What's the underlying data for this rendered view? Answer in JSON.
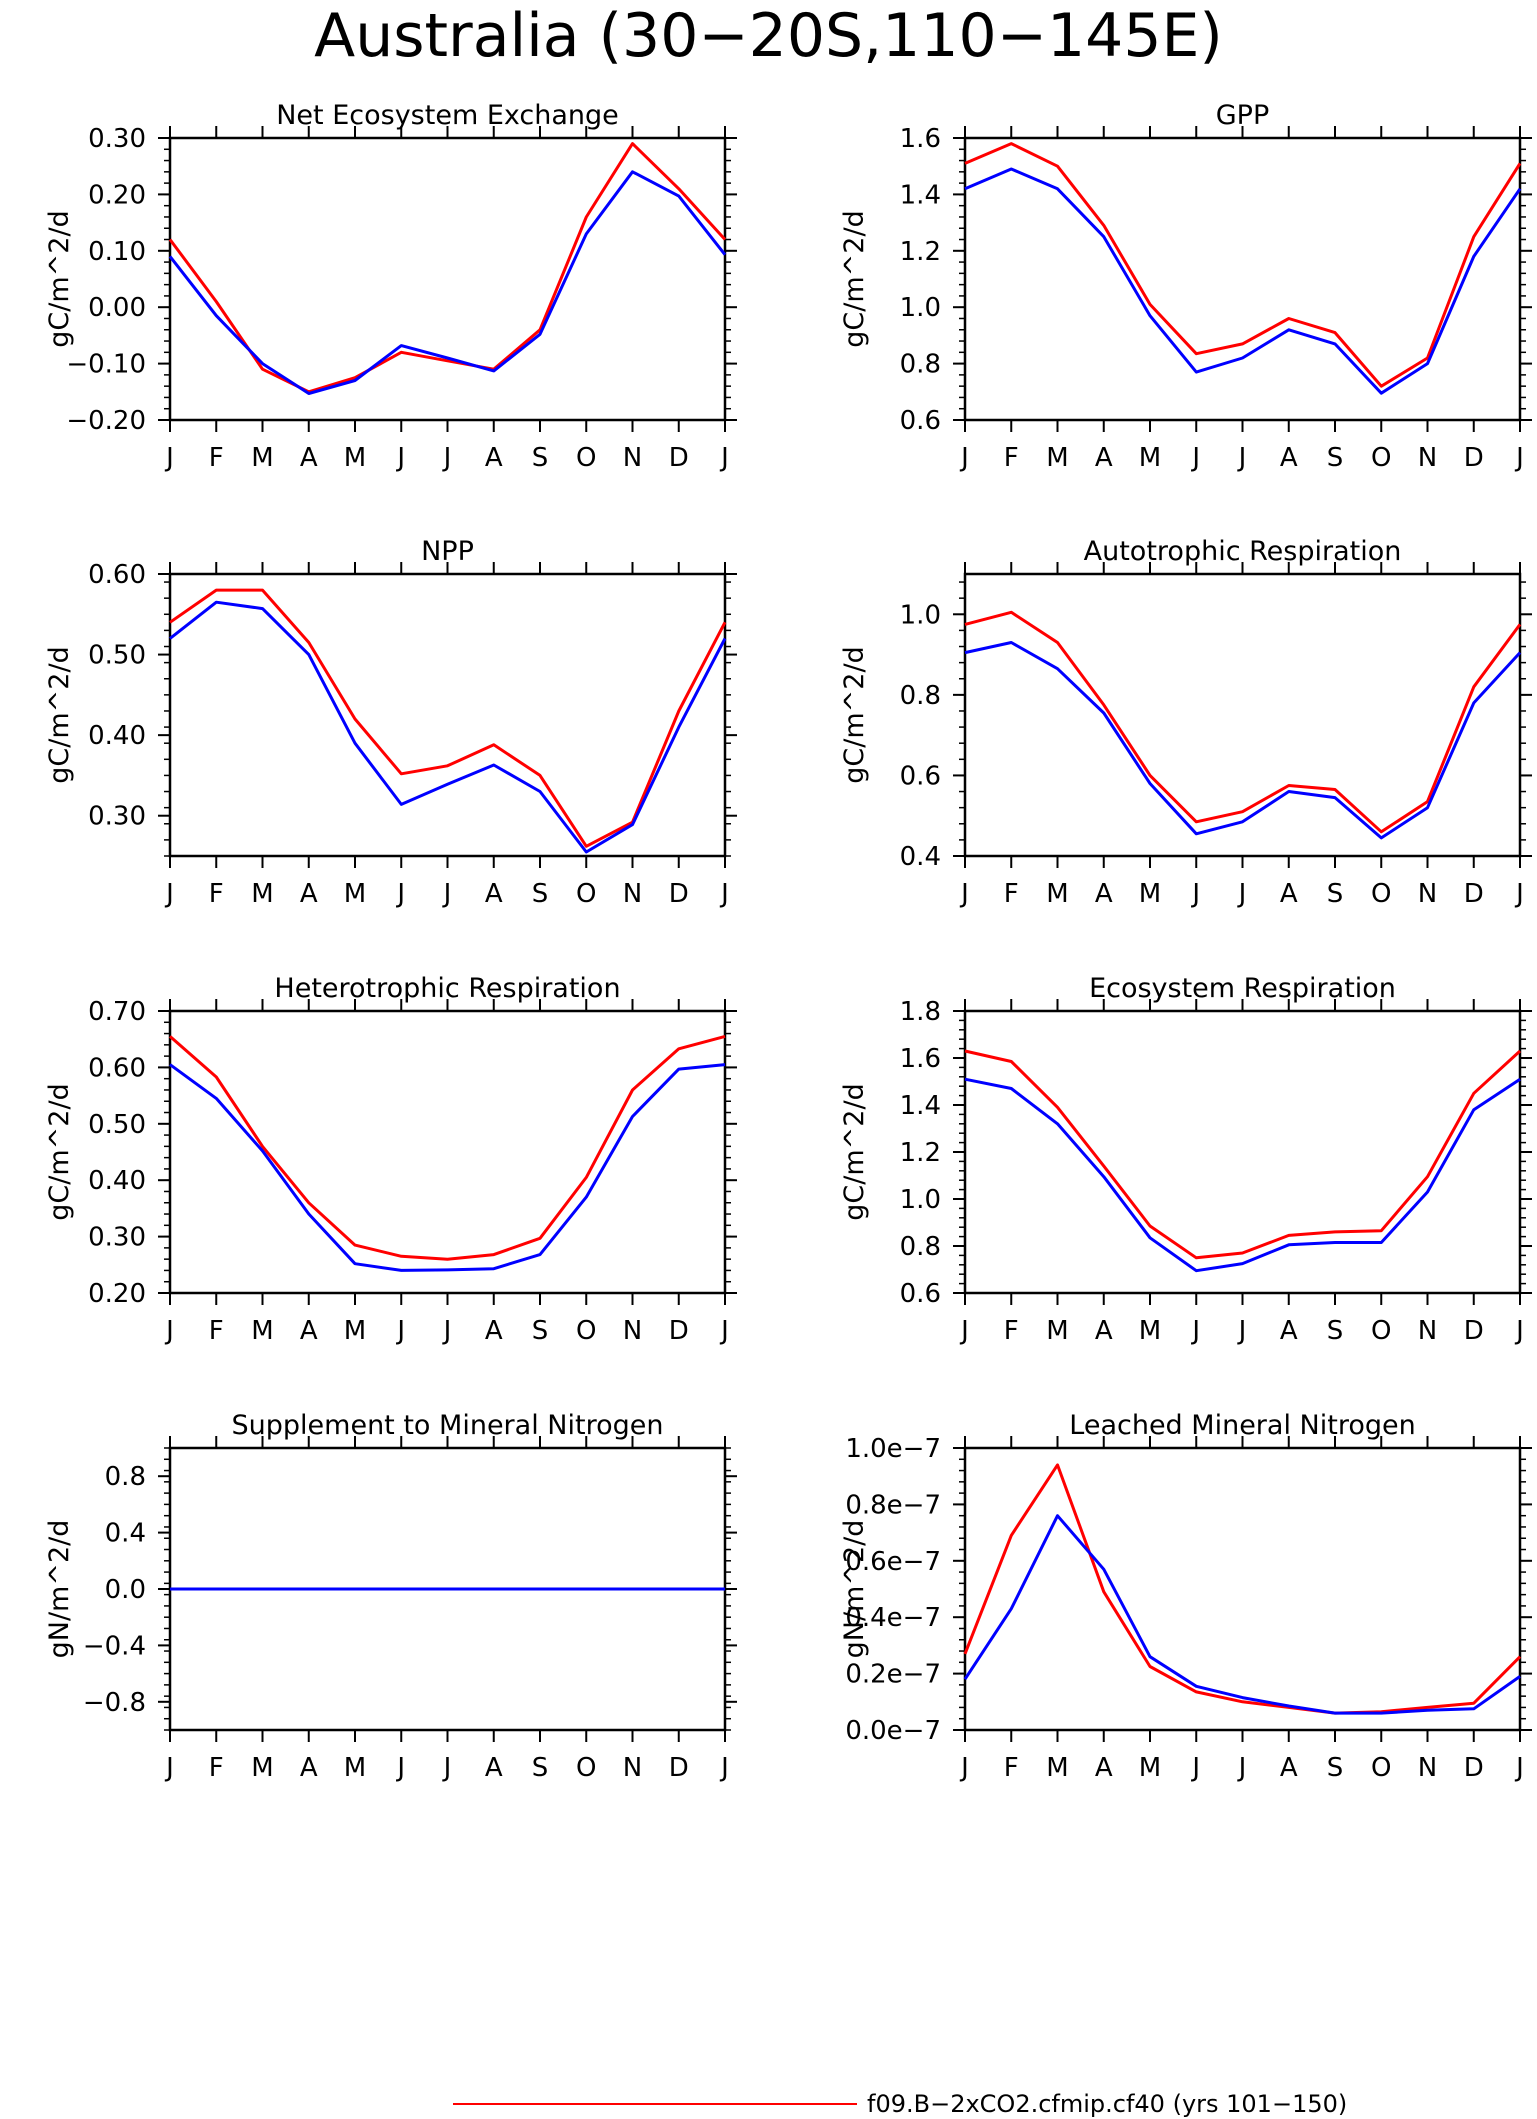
{
  "figure_title": "Australia (30−20S,110−145E)",
  "colors": {
    "series_1": "#ff0000",
    "series_2": "#0000ff",
    "axes": "#000000"
  },
  "legend": {
    "label": "f09.B−2xCO2.cfmip.cf40 (yrs 101−150)",
    "color": "#ff0000"
  },
  "chart_data": [
    {
      "type": "line",
      "title": "Net Ecosystem Exchange",
      "ylabel": "gC/m^2/d",
      "categories": [
        "J",
        "F",
        "M",
        "A",
        "M",
        "J",
        "J",
        "A",
        "S",
        "O",
        "N",
        "D",
        "J"
      ],
      "ylim": [
        -0.2,
        0.3
      ],
      "yticks": [
        -0.2,
        -0.1,
        0.0,
        0.1,
        0.2,
        0.3
      ],
      "ytick_labels": [
        "−0.20",
        "−0.10",
        "0.00",
        "0.10",
        "0.20",
        "0.30"
      ],
      "series": [
        {
          "color": "#ff0000",
          "values": [
            0.12,
            0.01,
            -0.11,
            -0.15,
            -0.125,
            -0.08,
            -0.095,
            -0.11,
            -0.04,
            0.16,
            0.29,
            0.21,
            0.12
          ]
        },
        {
          "color": "#0000ff",
          "values": [
            0.09,
            -0.015,
            -0.1,
            -0.153,
            -0.13,
            -0.068,
            -0.09,
            -0.113,
            -0.048,
            0.13,
            0.24,
            0.197,
            0.093
          ]
        }
      ]
    },
    {
      "type": "line",
      "title": "GPP",
      "ylabel": "gC/m^2/d",
      "categories": [
        "J",
        "F",
        "M",
        "A",
        "M",
        "J",
        "J",
        "A",
        "S",
        "O",
        "N",
        "D",
        "J"
      ],
      "ylim": [
        0.6,
        1.6
      ],
      "yticks": [
        0.6,
        0.8,
        1.0,
        1.2,
        1.4,
        1.6
      ],
      "ytick_labels": [
        "0.6",
        "0.8",
        "1.0",
        "1.2",
        "1.4",
        "1.6"
      ],
      "series": [
        {
          "color": "#ff0000",
          "values": [
            1.51,
            1.58,
            1.5,
            1.29,
            1.01,
            0.835,
            0.87,
            0.96,
            0.91,
            0.72,
            0.82,
            1.25,
            1.51
          ]
        },
        {
          "color": "#0000ff",
          "values": [
            1.42,
            1.49,
            1.42,
            1.25,
            0.97,
            0.77,
            0.82,
            0.92,
            0.87,
            0.695,
            0.8,
            1.18,
            1.42
          ]
        }
      ]
    },
    {
      "type": "line",
      "title": "NPP",
      "ylabel": "gC/m^2/d",
      "categories": [
        "J",
        "F",
        "M",
        "A",
        "M",
        "J",
        "J",
        "A",
        "S",
        "O",
        "N",
        "D",
        "J"
      ],
      "ylim": [
        0.25,
        0.6
      ],
      "yticks": [
        0.3,
        0.4,
        0.5,
        0.6
      ],
      "ytick_labels": [
        "0.30",
        "0.40",
        "0.50",
        "0.60"
      ],
      "series": [
        {
          "color": "#ff0000",
          "values": [
            0.54,
            0.58,
            0.58,
            0.515,
            0.42,
            0.352,
            0.362,
            0.388,
            0.35,
            0.262,
            0.292,
            0.43,
            0.54
          ]
        },
        {
          "color": "#0000ff",
          "values": [
            0.52,
            0.565,
            0.557,
            0.5,
            0.39,
            0.314,
            0.339,
            0.363,
            0.33,
            0.255,
            0.289,
            0.41,
            0.52
          ]
        }
      ]
    },
    {
      "type": "line",
      "title": "Autotrophic Respiration",
      "ylabel": "gC/m^2/d",
      "categories": [
        "J",
        "F",
        "M",
        "A",
        "M",
        "J",
        "J",
        "A",
        "S",
        "O",
        "N",
        "D",
        "J"
      ],
      "ylim": [
        0.4,
        1.1
      ],
      "yticks": [
        0.4,
        0.6,
        0.8,
        1.0
      ],
      "ytick_labels": [
        "0.4",
        "0.6",
        "0.8",
        "1.0"
      ],
      "series": [
        {
          "color": "#ff0000",
          "values": [
            0.975,
            1.005,
            0.93,
            0.775,
            0.6,
            0.485,
            0.51,
            0.575,
            0.565,
            0.46,
            0.535,
            0.82,
            0.975
          ]
        },
        {
          "color": "#0000ff",
          "values": [
            0.905,
            0.93,
            0.865,
            0.755,
            0.58,
            0.455,
            0.485,
            0.56,
            0.545,
            0.445,
            0.52,
            0.78,
            0.905
          ]
        }
      ]
    },
    {
      "type": "line",
      "title": "Heterotrophic Respiration",
      "ylabel": "gC/m^2/d",
      "categories": [
        "J",
        "F",
        "M",
        "A",
        "M",
        "J",
        "J",
        "A",
        "S",
        "O",
        "N",
        "D",
        "J"
      ],
      "ylim": [
        0.2,
        0.7
      ],
      "yticks": [
        0.2,
        0.3,
        0.4,
        0.5,
        0.6,
        0.7
      ],
      "ytick_labels": [
        "0.20",
        "0.30",
        "0.40",
        "0.50",
        "0.60",
        "0.70"
      ],
      "series": [
        {
          "color": "#ff0000",
          "values": [
            0.655,
            0.583,
            0.46,
            0.36,
            0.285,
            0.265,
            0.26,
            0.268,
            0.297,
            0.405,
            0.56,
            0.633,
            0.655
          ]
        },
        {
          "color": "#0000ff",
          "values": [
            0.605,
            0.545,
            0.452,
            0.34,
            0.252,
            0.24,
            0.241,
            0.243,
            0.268,
            0.37,
            0.513,
            0.597,
            0.605
          ]
        }
      ]
    },
    {
      "type": "line",
      "title": "Ecosystem Respiration",
      "ylabel": "gC/m^2/d",
      "categories": [
        "J",
        "F",
        "M",
        "A",
        "M",
        "J",
        "J",
        "A",
        "S",
        "O",
        "N",
        "D",
        "J"
      ],
      "ylim": [
        0.6,
        1.8
      ],
      "yticks": [
        0.6,
        0.8,
        1.0,
        1.2,
        1.4,
        1.6,
        1.8
      ],
      "ytick_labels": [
        "0.6",
        "0.8",
        "1.0",
        "1.2",
        "1.4",
        "1.6",
        "1.8"
      ],
      "series": [
        {
          "color": "#ff0000",
          "values": [
            1.63,
            1.585,
            1.39,
            1.14,
            0.885,
            0.75,
            0.77,
            0.845,
            0.86,
            0.865,
            1.095,
            1.45,
            1.63
          ]
        },
        {
          "color": "#0000ff",
          "values": [
            1.51,
            1.47,
            1.32,
            1.095,
            0.835,
            0.695,
            0.725,
            0.805,
            0.815,
            0.815,
            1.03,
            1.38,
            1.51
          ]
        }
      ]
    },
    {
      "type": "line",
      "title": "Supplement to Mineral Nitrogen",
      "ylabel": "gN/m^2/d",
      "categories": [
        "J",
        "F",
        "M",
        "A",
        "M",
        "J",
        "J",
        "A",
        "S",
        "O",
        "N",
        "D",
        "J"
      ],
      "ylim": [
        -1.0,
        1.0
      ],
      "yticks": [
        -0.8,
        -0.4,
        0.0,
        0.4,
        0.8
      ],
      "ytick_labels": [
        "−0.8",
        "−0.4",
        "0.0",
        "0.4",
        "0.8"
      ],
      "series": [
        {
          "color": "#ff0000",
          "values": [
            0,
            0,
            0,
            0,
            0,
            0,
            0,
            0,
            0,
            0,
            0,
            0,
            0
          ]
        },
        {
          "color": "#0000ff",
          "values": [
            0,
            0,
            0,
            0,
            0,
            0,
            0,
            0,
            0,
            0,
            0,
            0,
            0
          ]
        }
      ]
    },
    {
      "type": "line",
      "title": "Leached Mineral Nitrogen",
      "ylabel": "gN/m^2/d",
      "categories": [
        "J",
        "F",
        "M",
        "A",
        "M",
        "J",
        "J",
        "A",
        "S",
        "O",
        "N",
        "D",
        "J"
      ],
      "ylim": [
        0,
        1e-07
      ],
      "yticks": [
        0,
        2e-08,
        4e-08,
        6e-08,
        8e-08,
        1e-07
      ],
      "ytick_labels": [
        "0.0e−7",
        "0.2e−7",
        "0.4e−7",
        "0.6e−7",
        "0.8e−7",
        "1.0e−7"
      ],
      "series": [
        {
          "color": "#ff0000",
          "values": [
            2.7e-08,
            6.9e-08,
            9.4e-08,
            4.9e-08,
            2.25e-08,
            1.35e-08,
            1e-08,
            8e-09,
            6e-09,
            6.5e-09,
            8e-09,
            9.5e-09,
            2.6e-08
          ]
        },
        {
          "color": "#0000ff",
          "values": [
            1.8e-08,
            4.3e-08,
            7.6e-08,
            5.7e-08,
            2.6e-08,
            1.55e-08,
            1.15e-08,
            8.5e-09,
            6e-09,
            6e-09,
            7e-09,
            7.5e-09,
            1.9e-08
          ]
        }
      ]
    }
  ]
}
